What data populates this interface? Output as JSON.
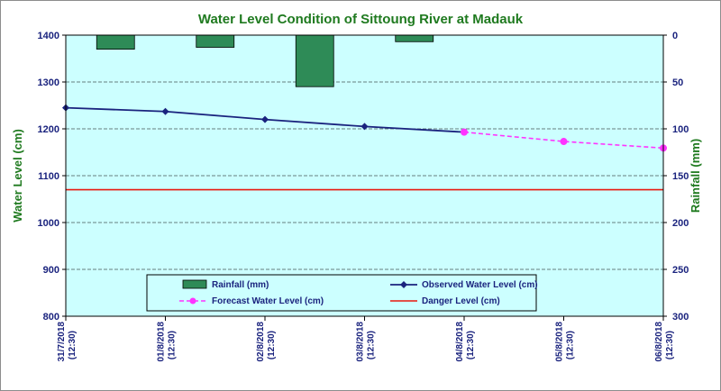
{
  "chart_data": {
    "type": "bar+line",
    "title": "Water Level Condition of Sittoung River at  Madauk",
    "ylabel_left": "Water  Level (cm)",
    "ylabel_right": "Rainfall (mm)",
    "ylim_left": [
      800,
      1400
    ],
    "ylim_right": [
      300,
      0
    ],
    "yticks_left": [
      "1400",
      "1300",
      "1200",
      "1100",
      "1000",
      "900",
      "800"
    ],
    "yticks_right": [
      "0",
      "50",
      "100",
      "150",
      "200",
      "250",
      "300"
    ],
    "categories": [
      [
        "31/7/2018",
        "(12:30)"
      ],
      [
        "01/8/2018",
        "(12:30)"
      ],
      [
        "02/8/2018",
        "(12:30)"
      ],
      [
        "03/8/2018",
        "(12:30)"
      ],
      [
        "04/8/2018",
        "(12:30)"
      ],
      [
        "05/8/2018",
        "(12:30)"
      ],
      [
        "06/8/2018",
        "(12:30)"
      ]
    ],
    "rainfall": [
      15,
      13,
      55,
      7,
      0,
      0,
      0
    ],
    "observed": [
      1245,
      1237,
      1220,
      1205,
      1193
    ],
    "forecast_start_index": 4,
    "forecast": [
      1193,
      1173,
      1159
    ],
    "danger_level": 1070,
    "grid": true,
    "legend_position": "bottom-center",
    "legend": {
      "rainfall": "Rainfall (mm)",
      "observed": "Observed Water Level (cm)",
      "forecast": "Forecast Water Level (cm)",
      "danger": "Danger Level (cm)"
    },
    "colors": {
      "plot_bg": "#ccffff",
      "rain_fill": "#2e8b57",
      "observed": "#1a237e",
      "forecast": "#ff33ff",
      "danger": "#e8190f",
      "text_dark": "#1a237e",
      "title": "#1f7a1f"
    }
  }
}
